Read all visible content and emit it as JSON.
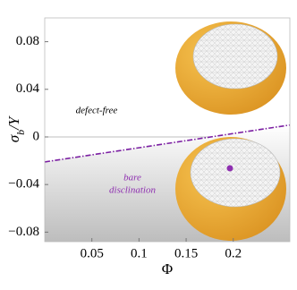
{
  "chart_data": {
    "type": "line",
    "xlabel": "Φ",
    "ylabel": [
      "σ",
      "b",
      "/Y"
    ],
    "x": [
      0,
      0.26
    ],
    "series": [
      {
        "color": "#7b1fa2",
        "values": [
          -0.021,
          0.01
        ]
      }
    ],
    "dashed": true,
    "shade_below": true,
    "xlim": [
      0,
      0.26
    ],
    "ylim": [
      -0.088,
      0.1
    ],
    "xticks": [
      0.05,
      0.1,
      0.15,
      0.2
    ],
    "yticks": [
      {
        "value": -0.08,
        "label": "−0.08"
      },
      {
        "value": -0.04,
        "label": "−0.04"
      },
      0,
      0.04,
      0.08
    ],
    "annotations": [
      {
        "lines": [
          "defect-free"
        ],
        "x": 0.055,
        "y": 0.022,
        "color": "#000000"
      },
      {
        "lines": [
          "bare",
          "disclination"
        ],
        "x": 0.093,
        "y": -0.04,
        "color": "#8e2fb0"
      }
    ]
  }
}
